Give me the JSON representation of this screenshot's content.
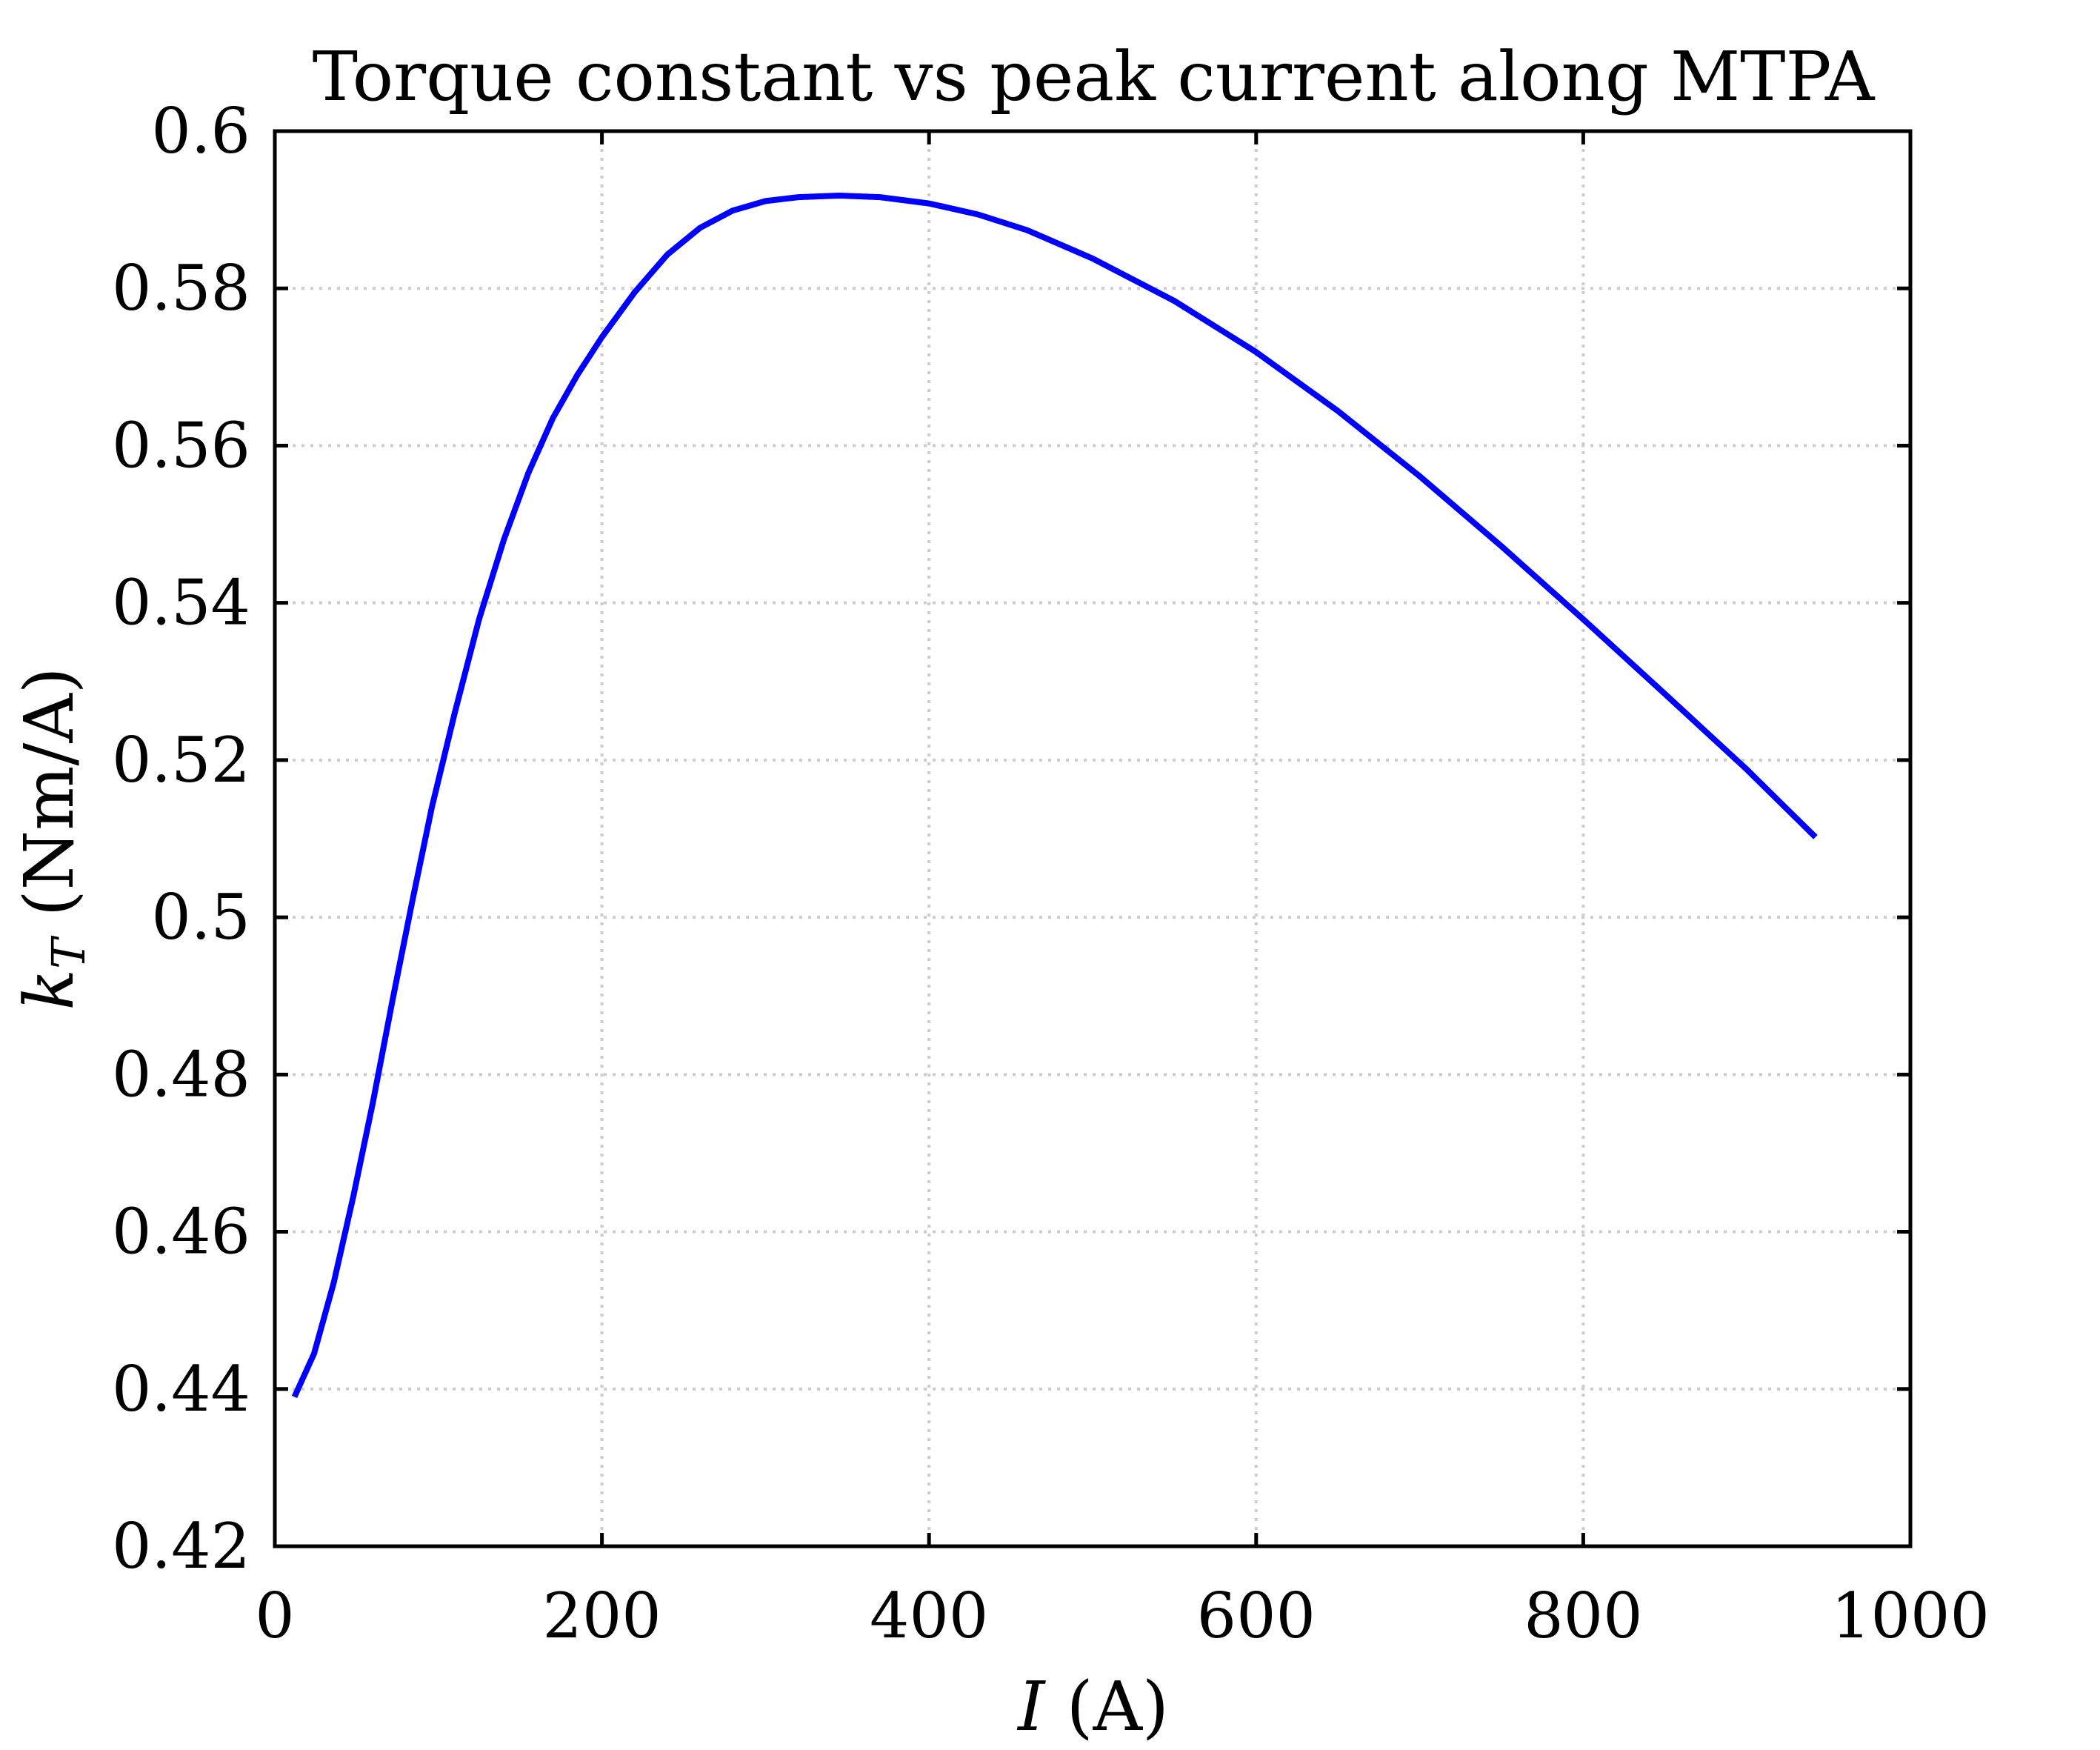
{
  "chart_data": {
    "type": "line",
    "title": "Torque constant vs peak current along MTPA",
    "xlabel_var": "I",
    "xlabel_unit": " (A)",
    "ylabel_var": "k",
    "ylabel_sub": "T",
    "ylabel_unit": " (Nm/A)",
    "xlim": [
      0,
      1000
    ],
    "ylim": [
      0.42,
      0.6
    ],
    "xticks": [
      0,
      200,
      400,
      600,
      800,
      1000
    ],
    "xtick_labels": [
      "0",
      "200",
      "400",
      "600",
      "800",
      "1000"
    ],
    "yticks": [
      0.42,
      0.44,
      0.46,
      0.48,
      0.5,
      0.52,
      0.54,
      0.56,
      0.58,
      0.6
    ],
    "ytick_labels": [
      "0.42",
      "0.44",
      "0.46",
      "0.48",
      "0.5",
      "0.52",
      "0.54",
      "0.56",
      "0.58",
      "0.6"
    ],
    "grid": true,
    "line_color": "#0000ff",
    "series": [
      {
        "x": [
          12,
          24,
          36,
          48,
          60,
          72,
          84,
          96,
          110,
          125,
          140,
          155,
          170,
          185,
          200,
          220,
          240,
          260,
          280,
          300,
          320,
          345,
          370,
          400,
          430,
          460,
          500,
          550,
          600,
          650,
          700,
          750,
          800,
          850,
          900,
          942
        ],
        "y": [
          0.439,
          0.4445,
          0.4535,
          0.4645,
          0.4765,
          0.4895,
          0.502,
          0.514,
          0.526,
          0.538,
          0.548,
          0.5565,
          0.5635,
          0.569,
          0.5738,
          0.5795,
          0.5843,
          0.5877,
          0.5899,
          0.5911,
          0.5916,
          0.5918,
          0.5916,
          0.5908,
          0.5894,
          0.5874,
          0.5838,
          0.5784,
          0.5719,
          0.5644,
          0.5561,
          0.5472,
          0.5379,
          0.5284,
          0.5188,
          0.5102
        ]
      }
    ]
  }
}
